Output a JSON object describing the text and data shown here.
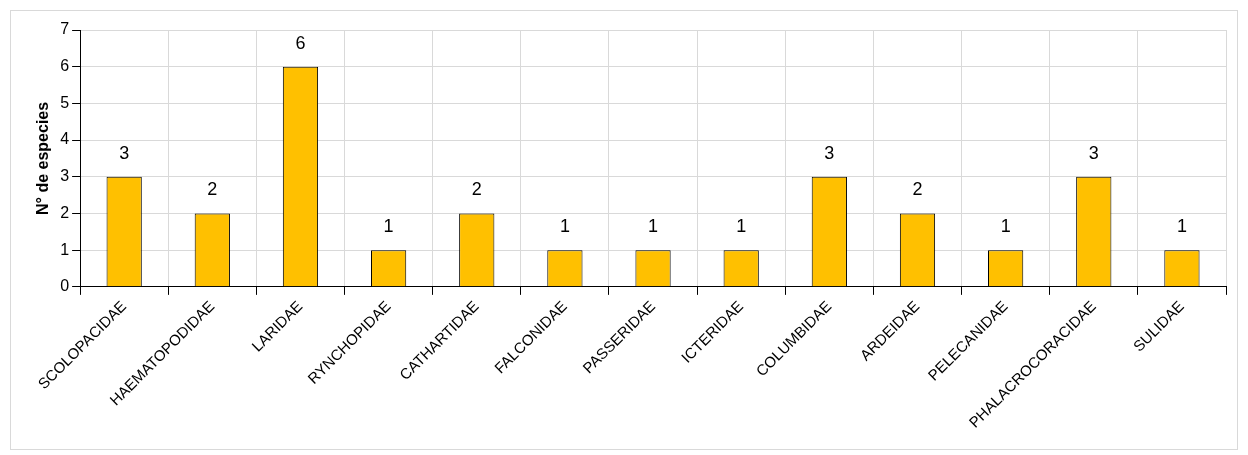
{
  "chart_data": {
    "type": "bar",
    "ylabel": "N° de especies",
    "categories": [
      "SCOLOPACIDAE",
      "HAEMATOPODIDAE",
      "LARIDAE",
      "RYNCHOPIDAE",
      "CATHARTIDAE",
      "FALCONIDAE",
      "PASSERIDAE",
      "ICTERIDAE",
      "COLUMBIDAE",
      "ARDEIDAE",
      "PELECANIDAE",
      "PHALACROCORACIDAE",
      "SULIDAE"
    ],
    "values": [
      3,
      2,
      6,
      1,
      2,
      1,
      1,
      1,
      3,
      2,
      1,
      3,
      1
    ],
    "color": "#ffc000",
    "ylim": [
      0,
      7
    ],
    "yticks": [
      0,
      1,
      2,
      3,
      4,
      5,
      6,
      7
    ],
    "grid": true,
    "data_labels": true
  }
}
